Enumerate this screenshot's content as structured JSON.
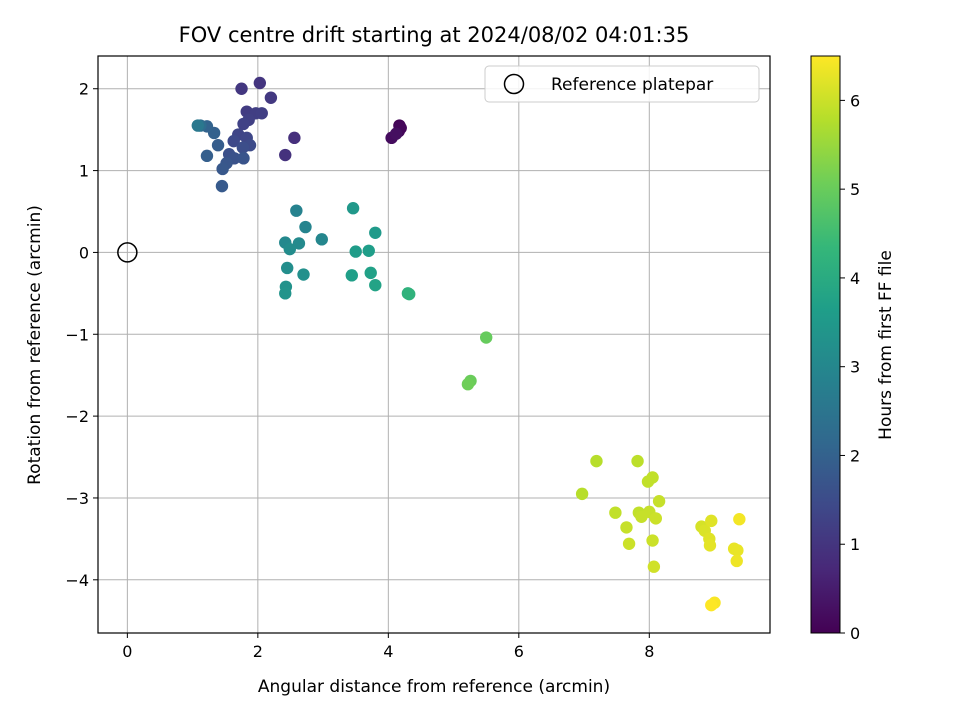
{
  "chart_data": {
    "type": "scatter",
    "title": "FOV centre drift starting at 2024/08/02 04:01:35",
    "xlabel": "Angular distance from reference (arcmin)",
    "ylabel": "Rotation from reference (arcmin)",
    "xlim": [
      -0.45,
      9.85
    ],
    "ylim": [
      -4.65,
      2.4
    ],
    "xticks": [
      0,
      2,
      4,
      6,
      8
    ],
    "yticks": [
      -4,
      -3,
      -2,
      -1,
      0,
      1,
      2
    ],
    "xtick_labels": [
      "0",
      "2",
      "4",
      "6",
      "8"
    ],
    "ytick_labels": [
      "−4",
      "−3",
      "−2",
      "−1",
      "0",
      "1",
      "2"
    ],
    "grid": true,
    "legend": {
      "placement": "upper right",
      "entries": [
        "Reference platepar"
      ]
    },
    "reference_point": {
      "x": 0,
      "y": 0,
      "label": "Reference platepar"
    },
    "colorbar": {
      "label": "Hours from first FF file",
      "min": 0,
      "max": 6.5,
      "ticks": [
        0,
        1,
        2,
        3,
        4,
        5,
        6
      ],
      "tick_labels": [
        "0",
        "1",
        "2",
        "3",
        "4",
        "5",
        "6"
      ],
      "colormap": "viridis"
    },
    "points": [
      {
        "x": 4.17,
        "y": 1.55,
        "h": 0.05
      },
      {
        "x": 4.19,
        "y": 1.52,
        "h": 0.08
      },
      {
        "x": 4.16,
        "y": 1.48,
        "h": 0.1
      },
      {
        "x": 4.18,
        "y": 1.53,
        "h": 0.12
      },
      {
        "x": 4.05,
        "y": 1.4,
        "h": 0.2
      },
      {
        "x": 4.12,
        "y": 1.45,
        "h": 0.25
      },
      {
        "x": 2.56,
        "y": 1.4,
        "h": 0.9
      },
      {
        "x": 2.42,
        "y": 1.19,
        "h": 0.95
      },
      {
        "x": 2.03,
        "y": 2.07,
        "h": 1.0
      },
      {
        "x": 1.75,
        "y": 2.0,
        "h": 1.05
      },
      {
        "x": 2.2,
        "y": 1.89,
        "h": 1.1
      },
      {
        "x": 1.83,
        "y": 1.72,
        "h": 1.15
      },
      {
        "x": 1.97,
        "y": 1.7,
        "h": 1.2
      },
      {
        "x": 2.06,
        "y": 1.7,
        "h": 1.22
      },
      {
        "x": 1.86,
        "y": 1.62,
        "h": 1.25
      },
      {
        "x": 1.78,
        "y": 1.57,
        "h": 1.3
      },
      {
        "x": 1.7,
        "y": 1.44,
        "h": 1.35
      },
      {
        "x": 1.83,
        "y": 1.4,
        "h": 1.4
      },
      {
        "x": 1.63,
        "y": 1.36,
        "h": 1.45
      },
      {
        "x": 1.88,
        "y": 1.31,
        "h": 1.5
      },
      {
        "x": 1.77,
        "y": 1.28,
        "h": 1.55
      },
      {
        "x": 1.56,
        "y": 1.2,
        "h": 1.6
      },
      {
        "x": 1.64,
        "y": 1.15,
        "h": 1.65
      },
      {
        "x": 1.78,
        "y": 1.15,
        "h": 1.7
      },
      {
        "x": 1.52,
        "y": 1.09,
        "h": 1.75
      },
      {
        "x": 1.46,
        "y": 1.02,
        "h": 1.8
      },
      {
        "x": 1.45,
        "y": 0.81,
        "h": 1.85
      },
      {
        "x": 1.39,
        "y": 1.31,
        "h": 1.9
      },
      {
        "x": 1.22,
        "y": 1.18,
        "h": 1.95
      },
      {
        "x": 1.33,
        "y": 1.46,
        "h": 2.0
      },
      {
        "x": 1.22,
        "y": 1.54,
        "h": 2.05
      },
      {
        "x": 1.12,
        "y": 1.55,
        "h": 2.3
      },
      {
        "x": 1.08,
        "y": 1.55,
        "h": 2.6
      },
      {
        "x": 2.59,
        "y": 0.51,
        "h": 2.9
      },
      {
        "x": 2.73,
        "y": 0.31,
        "h": 2.95
      },
      {
        "x": 2.98,
        "y": 0.16,
        "h": 3.0
      },
      {
        "x": 2.42,
        "y": 0.12,
        "h": 3.05
      },
      {
        "x": 2.63,
        "y": 0.11,
        "h": 3.1
      },
      {
        "x": 2.49,
        "y": 0.04,
        "h": 3.15
      },
      {
        "x": 2.45,
        "y": -0.19,
        "h": 3.2
      },
      {
        "x": 2.7,
        "y": -0.27,
        "h": 3.25
      },
      {
        "x": 2.43,
        "y": -0.42,
        "h": 3.3
      },
      {
        "x": 2.42,
        "y": -0.5,
        "h": 3.35
      },
      {
        "x": 3.46,
        "y": 0.54,
        "h": 3.45
      },
      {
        "x": 3.8,
        "y": 0.24,
        "h": 3.5
      },
      {
        "x": 3.5,
        "y": 0.01,
        "h": 3.55
      },
      {
        "x": 3.7,
        "y": 0.02,
        "h": 3.6
      },
      {
        "x": 3.44,
        "y": -0.28,
        "h": 3.65
      },
      {
        "x": 3.73,
        "y": -0.25,
        "h": 3.7
      },
      {
        "x": 3.8,
        "y": -0.4,
        "h": 3.75
      },
      {
        "x": 4.3,
        "y": -0.5,
        "h": 4.15
      },
      {
        "x": 4.32,
        "y": -0.51,
        "h": 4.2
      },
      {
        "x": 5.5,
        "y": -1.04,
        "h": 4.95
      },
      {
        "x": 5.26,
        "y": -1.57,
        "h": 5.0
      },
      {
        "x": 5.22,
        "y": -1.61,
        "h": 5.05
      },
      {
        "x": 7.19,
        "y": -2.55,
        "h": 5.8
      },
      {
        "x": 7.82,
        "y": -2.55,
        "h": 5.85
      },
      {
        "x": 6.97,
        "y": -2.95,
        "h": 5.8
      },
      {
        "x": 8.05,
        "y": -2.75,
        "h": 5.9
      },
      {
        "x": 7.98,
        "y": -2.8,
        "h": 5.9
      },
      {
        "x": 8.15,
        "y": -3.04,
        "h": 5.95
      },
      {
        "x": 7.48,
        "y": -3.18,
        "h": 5.9
      },
      {
        "x": 7.84,
        "y": -3.18,
        "h": 5.9
      },
      {
        "x": 7.88,
        "y": -3.23,
        "h": 5.95
      },
      {
        "x": 8.0,
        "y": -3.17,
        "h": 5.95
      },
      {
        "x": 8.1,
        "y": -3.25,
        "h": 6.0
      },
      {
        "x": 7.65,
        "y": -3.36,
        "h": 5.95
      },
      {
        "x": 7.69,
        "y": -3.56,
        "h": 6.0
      },
      {
        "x": 8.05,
        "y": -3.52,
        "h": 6.0
      },
      {
        "x": 8.07,
        "y": -3.84,
        "h": 6.05
      },
      {
        "x": 8.8,
        "y": -3.35,
        "h": 6.1
      },
      {
        "x": 8.85,
        "y": -3.4,
        "h": 6.15
      },
      {
        "x": 8.95,
        "y": -3.28,
        "h": 6.2
      },
      {
        "x": 8.92,
        "y": -3.5,
        "h": 6.2
      },
      {
        "x": 8.93,
        "y": -3.58,
        "h": 6.25
      },
      {
        "x": 9.3,
        "y": -3.62,
        "h": 6.3
      },
      {
        "x": 9.35,
        "y": -3.64,
        "h": 6.3
      },
      {
        "x": 9.34,
        "y": -3.77,
        "h": 6.35
      },
      {
        "x": 9.38,
        "y": -3.26,
        "h": 6.4
      },
      {
        "x": 9.0,
        "y": -4.28,
        "h": 6.45
      },
      {
        "x": 8.95,
        "y": -4.31,
        "h": 6.5
      }
    ]
  }
}
